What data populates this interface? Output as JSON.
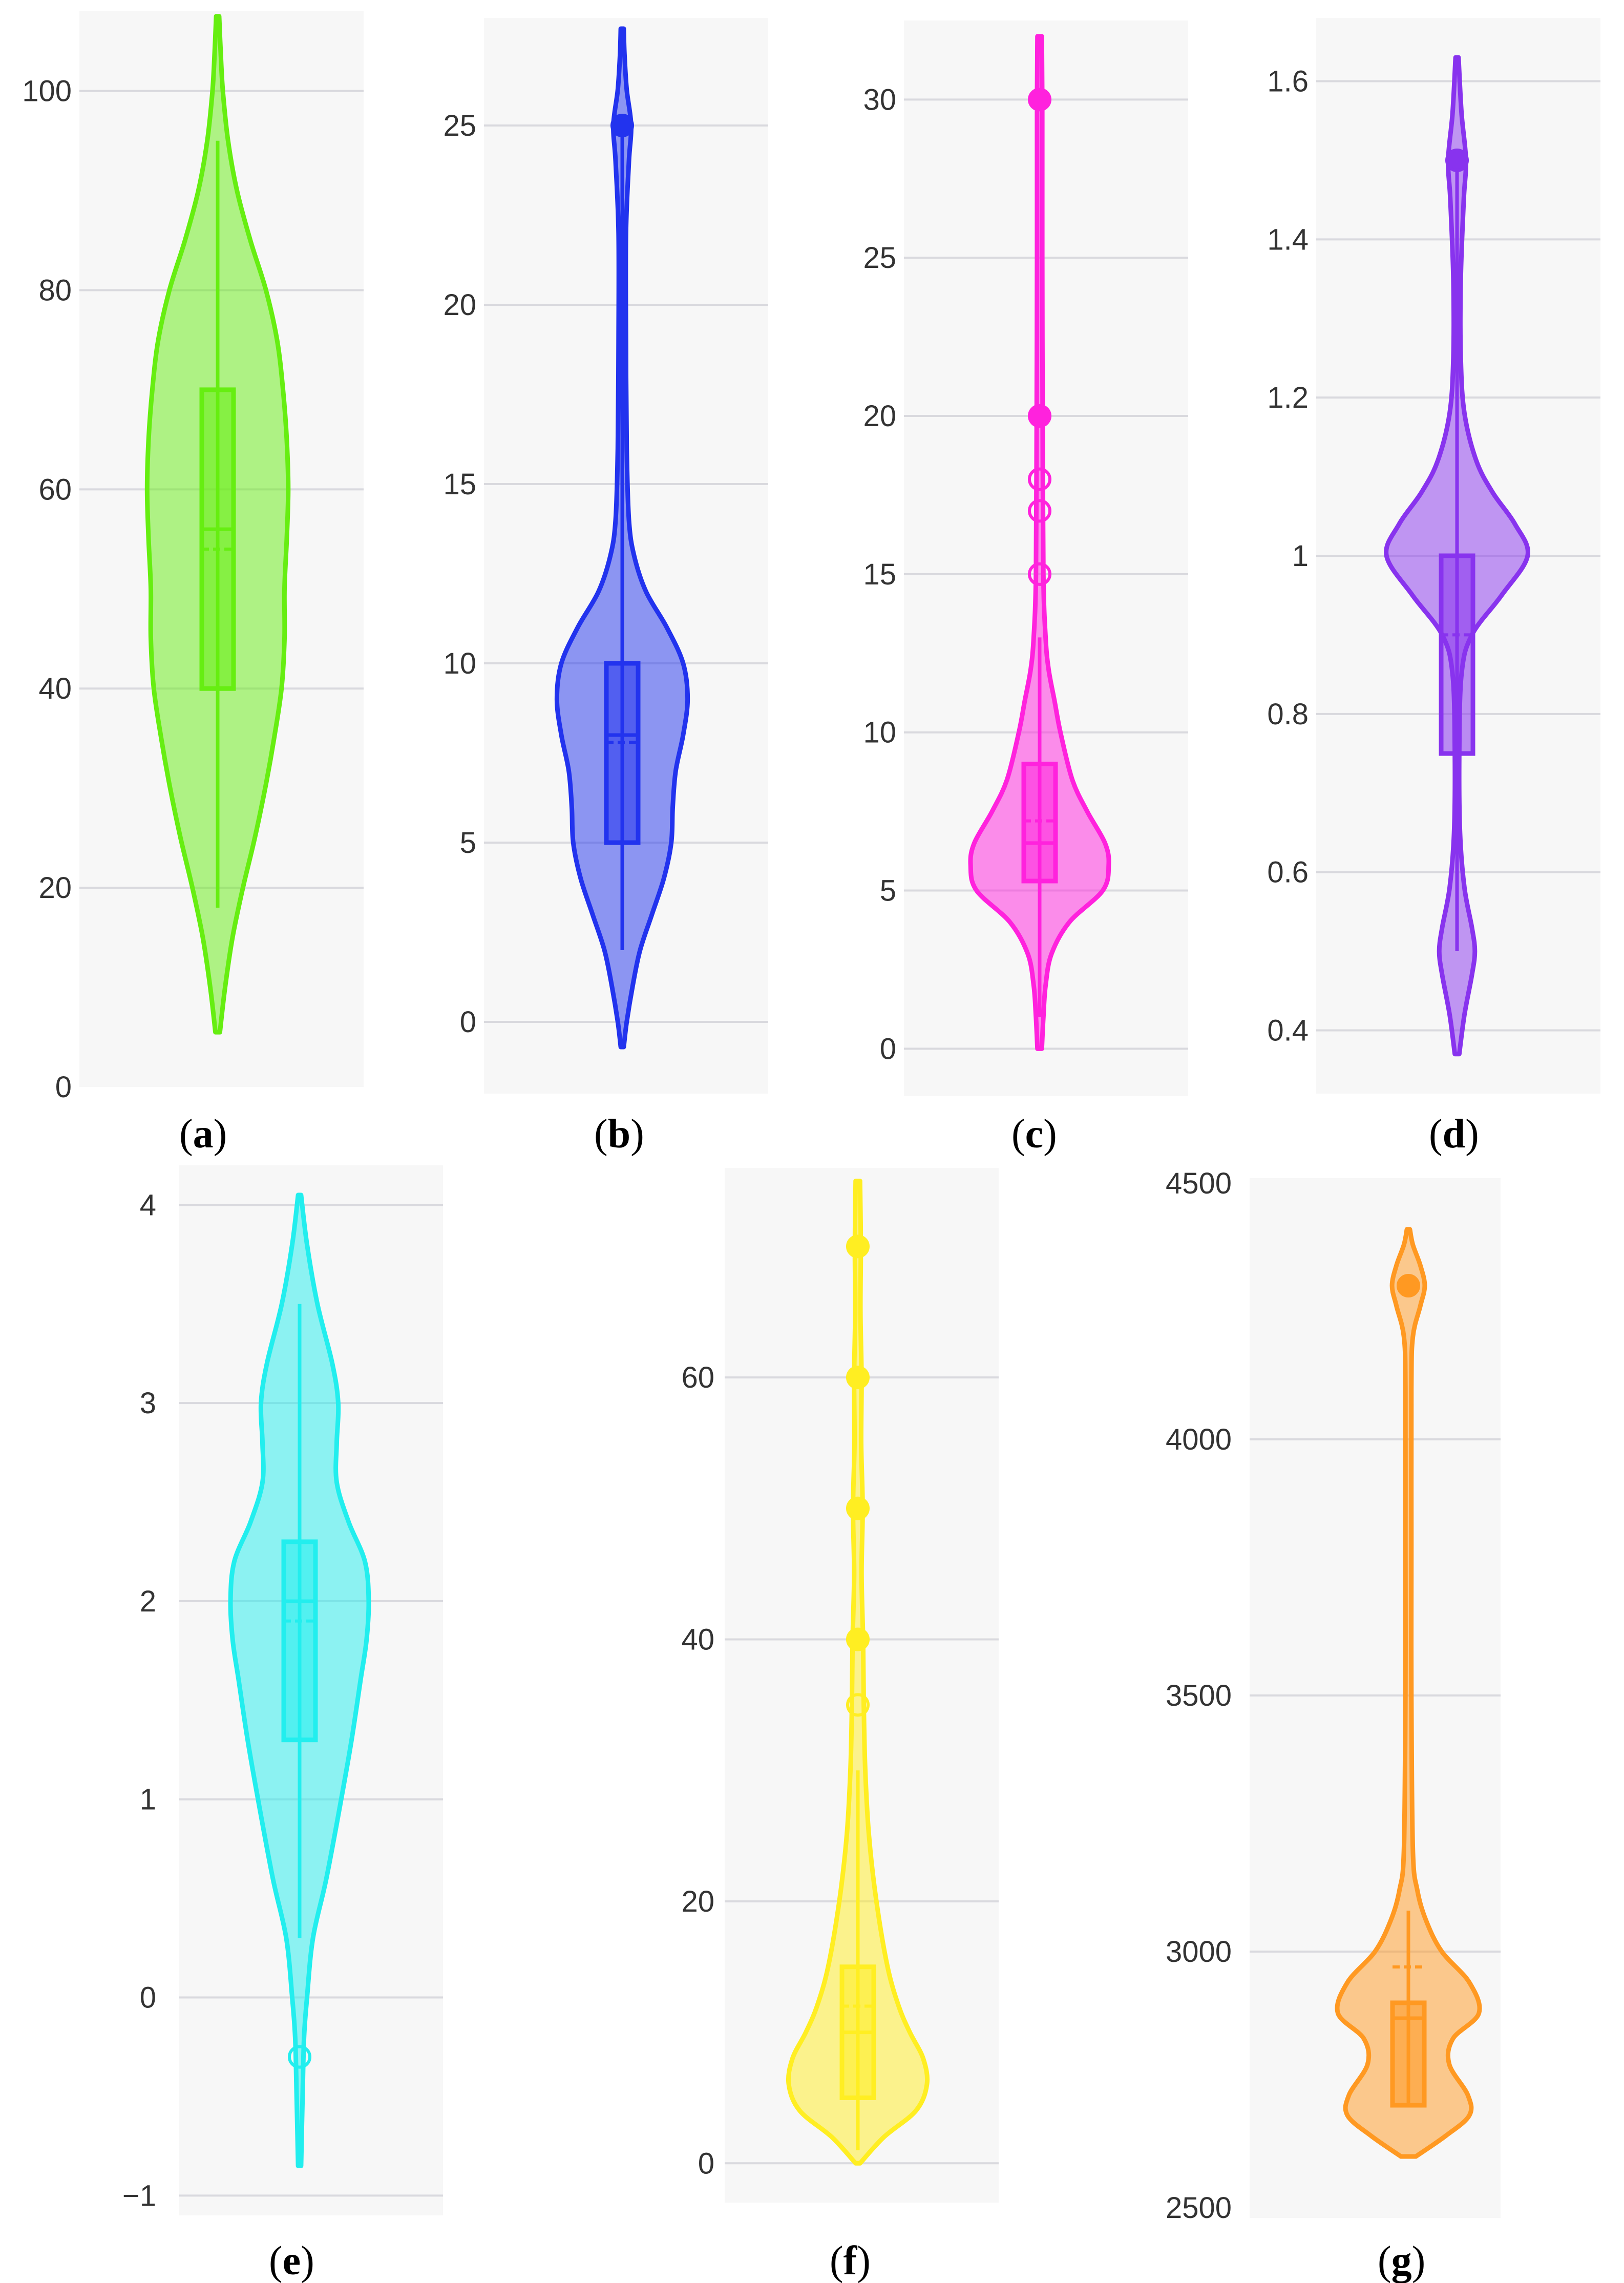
{
  "chart_data": [
    {
      "type": "violin",
      "panel": "a",
      "caption_letter": "a",
      "color": "#66ee11",
      "ylim": [
        0,
        108
      ],
      "yticks": [
        "0",
        "20",
        "40",
        "60",
        "80",
        "100"
      ],
      "ytick_values": [
        0,
        20,
        40,
        60,
        80,
        100
      ],
      "gridlines": [
        20,
        40,
        60,
        80,
        100
      ],
      "min": 5.5,
      "max": 107.5,
      "whisker_low": 18,
      "whisker_high": 95,
      "q1": 40,
      "median": 56,
      "q3": 70,
      "mean": 54,
      "outliers": [],
      "density": [
        [
          5.5,
          0.03
        ],
        [
          10,
          0.1
        ],
        [
          15,
          0.2
        ],
        [
          20,
          0.34
        ],
        [
          25,
          0.5
        ],
        [
          30,
          0.64
        ],
        [
          35,
          0.76
        ],
        [
          40,
          0.86
        ],
        [
          45,
          0.9
        ],
        [
          50,
          0.9
        ],
        [
          55,
          0.93
        ],
        [
          60,
          0.95
        ],
        [
          65,
          0.93
        ],
        [
          70,
          0.88
        ],
        [
          75,
          0.8
        ],
        [
          80,
          0.65
        ],
        [
          85,
          0.44
        ],
        [
          90,
          0.26
        ],
        [
          95,
          0.14
        ],
        [
          100,
          0.07
        ],
        [
          104,
          0.04
        ],
        [
          107.5,
          0.02
        ]
      ]
    },
    {
      "type": "violin",
      "panel": "b",
      "caption_letter": "b",
      "color": "#2233ee",
      "ylim": [
        -2,
        28
      ],
      "yticks": [
        "0",
        "5",
        "10",
        "15",
        "20",
        "25"
      ],
      "ytick_values": [
        0,
        5,
        10,
        15,
        20,
        25
      ],
      "gridlines": [
        0,
        5,
        10,
        15,
        20,
        25
      ],
      "min": -0.7,
      "max": 27.7,
      "whisker_low": 2,
      "whisker_high": 25,
      "q1": 5,
      "median": 8,
      "q3": 10,
      "mean": 7.8,
      "outliers": [
        {
          "value": 25,
          "filled": true
        }
      ],
      "density": [
        [
          -0.7,
          0.02
        ],
        [
          0,
          0.06
        ],
        [
          1,
          0.14
        ],
        [
          2,
          0.24
        ],
        [
          3,
          0.4
        ],
        [
          4,
          0.56
        ],
        [
          5,
          0.66
        ],
        [
          6,
          0.68
        ],
        [
          7,
          0.72
        ],
        [
          8,
          0.82
        ],
        [
          9,
          0.88
        ],
        [
          10,
          0.82
        ],
        [
          11,
          0.6
        ],
        [
          12,
          0.32
        ],
        [
          13,
          0.16
        ],
        [
          14,
          0.09
        ],
        [
          16,
          0.06
        ],
        [
          19,
          0.05
        ],
        [
          22,
          0.05
        ],
        [
          24,
          0.09
        ],
        [
          25,
          0.12
        ],
        [
          26,
          0.06
        ],
        [
          27,
          0.03
        ],
        [
          27.7,
          0.02
        ]
      ]
    },
    {
      "type": "violin",
      "panel": "c",
      "caption_letter": "c",
      "color": "#ff22dd",
      "ylim": [
        -1.5,
        32.5
      ],
      "yticks": [
        "0",
        "5",
        "10",
        "15",
        "20",
        "25",
        "30"
      ],
      "ytick_values": [
        0,
        5,
        10,
        15,
        20,
        25,
        30
      ],
      "gridlines": [
        0,
        5,
        10,
        15,
        20,
        25,
        30
      ],
      "min": 0,
      "max": 32,
      "whisker_low": 1,
      "whisker_high": 13,
      "q1": 5.3,
      "median": 6.5,
      "q3": 9,
      "mean": 7.2,
      "outliers": [
        {
          "value": 15,
          "filled": false
        },
        {
          "value": 17,
          "filled": false
        },
        {
          "value": 18,
          "filled": false
        },
        {
          "value": 20,
          "filled": true
        },
        {
          "value": 30,
          "filled": true
        }
      ],
      "density": [
        [
          0,
          0.03
        ],
        [
          1,
          0.05
        ],
        [
          2,
          0.08
        ],
        [
          3,
          0.16
        ],
        [
          4,
          0.4
        ],
        [
          5,
          0.85
        ],
        [
          5.8,
          0.93
        ],
        [
          6.5,
          0.88
        ],
        [
          7.5,
          0.64
        ],
        [
          8.5,
          0.44
        ],
        [
          10,
          0.28
        ],
        [
          11,
          0.2
        ],
        [
          12,
          0.12
        ],
        [
          13,
          0.08
        ],
        [
          15,
          0.05
        ],
        [
          20,
          0.04
        ],
        [
          25,
          0.035
        ],
        [
          30,
          0.035
        ],
        [
          32,
          0.03
        ]
      ]
    },
    {
      "type": "violin",
      "panel": "d",
      "caption_letter": "d",
      "color": "#8833ee",
      "ylim": [
        0.32,
        1.68
      ],
      "yticks": [
        "0.4",
        "0.6",
        "0.8",
        "1",
        "1.2",
        "1.4",
        "1.6"
      ],
      "ytick_values": [
        0.4,
        0.6,
        0.8,
        1,
        1.2,
        1.4,
        1.6
      ],
      "gridlines": [
        0.4,
        0.6,
        0.8,
        1,
        1.2,
        1.4,
        1.6
      ],
      "min": 0.37,
      "max": 1.63,
      "whisker_low": 0.5,
      "whisker_high": 1.5,
      "q1": 0.75,
      "median": 1,
      "q3": 1,
      "mean": 0.9,
      "outliers": [
        {
          "value": 1.5,
          "filled": true
        }
      ],
      "density": [
        [
          0.37,
          0.03
        ],
        [
          0.42,
          0.1
        ],
        [
          0.47,
          0.2
        ],
        [
          0.5,
          0.24
        ],
        [
          0.53,
          0.2
        ],
        [
          0.58,
          0.1
        ],
        [
          0.65,
          0.04
        ],
        [
          0.75,
          0.03
        ],
        [
          0.85,
          0.06
        ],
        [
          0.9,
          0.2
        ],
        [
          0.95,
          0.6
        ],
        [
          1,
          0.95
        ],
        [
          1.04,
          0.78
        ],
        [
          1.08,
          0.48
        ],
        [
          1.12,
          0.26
        ],
        [
          1.18,
          0.1
        ],
        [
          1.25,
          0.05
        ],
        [
          1.35,
          0.05
        ],
        [
          1.45,
          0.09
        ],
        [
          1.5,
          0.12
        ],
        [
          1.56,
          0.06
        ],
        [
          1.63,
          0.02
        ]
      ]
    },
    {
      "type": "violin",
      "panel": "e",
      "caption_letter": "e",
      "color": "#22eeee",
      "ylim": [
        -1.1,
        4.2
      ],
      "yticks": [
        "−1",
        "0",
        "1",
        "2",
        "3",
        "4"
      ],
      "ytick_values": [
        -1,
        0,
        1,
        2,
        3,
        4
      ],
      "gridlines": [
        -1,
        0,
        1,
        2,
        3,
        4
      ],
      "min": -0.85,
      "max": 4.05,
      "whisker_low": 0.3,
      "whisker_high": 3.5,
      "q1": 1.3,
      "median": 2,
      "q3": 2.3,
      "mean": 1.9,
      "outliers": [
        {
          "value": -0.3,
          "filled": false
        }
      ],
      "density": [
        [
          -0.85,
          0.02
        ],
        [
          -0.5,
          0.04
        ],
        [
          -0.2,
          0.06
        ],
        [
          0,
          0.1
        ],
        [
          0.3,
          0.18
        ],
        [
          0.6,
          0.36
        ],
        [
          1,
          0.56
        ],
        [
          1.3,
          0.7
        ],
        [
          1.6,
          0.82
        ],
        [
          1.8,
          0.9
        ],
        [
          2,
          0.93
        ],
        [
          2.2,
          0.88
        ],
        [
          2.4,
          0.66
        ],
        [
          2.6,
          0.5
        ],
        [
          2.8,
          0.5
        ],
        [
          3,
          0.52
        ],
        [
          3.2,
          0.44
        ],
        [
          3.5,
          0.24
        ],
        [
          3.8,
          0.1
        ],
        [
          4.05,
          0.02
        ]
      ]
    },
    {
      "type": "violin",
      "panel": "f",
      "caption_letter": "f",
      "color": "#ffee22",
      "ylim": [
        -3,
        76
      ],
      "yticks": [
        "0",
        "20",
        "40",
        "60"
      ],
      "ytick_values": [
        0,
        20,
        40,
        60
      ],
      "gridlines": [
        0,
        20,
        40,
        60
      ],
      "min": 0,
      "max": 75,
      "whisker_low": 1,
      "whisker_high": 30,
      "q1": 5,
      "median": 10,
      "q3": 15,
      "mean": 12,
      "outliers": [
        {
          "value": 35,
          "filled": false
        },
        {
          "value": 40,
          "filled": true
        },
        {
          "value": 50,
          "filled": true
        },
        {
          "value": 60,
          "filled": true
        },
        {
          "value": 70,
          "filled": true
        }
      ],
      "density": [
        [
          0,
          0.03
        ],
        [
          2,
          0.35
        ],
        [
          4,
          0.78
        ],
        [
          6,
          0.93
        ],
        [
          8,
          0.88
        ],
        [
          10,
          0.7
        ],
        [
          12,
          0.55
        ],
        [
          15,
          0.4
        ],
        [
          20,
          0.25
        ],
        [
          25,
          0.15
        ],
        [
          30,
          0.1
        ],
        [
          35,
          0.08
        ],
        [
          40,
          0.07
        ],
        [
          45,
          0.05
        ],
        [
          50,
          0.065
        ],
        [
          55,
          0.045
        ],
        [
          60,
          0.05
        ],
        [
          65,
          0.035
        ],
        [
          70,
          0.04
        ],
        [
          75,
          0.03
        ]
      ]
    },
    {
      "type": "violin",
      "panel": "g",
      "caption_letter": "g",
      "color": "#ff9922",
      "ylim": [
        2480,
        4510
      ],
      "yticks": [
        "2500",
        "3000",
        "3500",
        "4000",
        "4500"
      ],
      "ytick_values": [
        2500,
        3000,
        3500,
        4000,
        4500
      ],
      "gridlines": [
        3000,
        3500,
        4000
      ],
      "min": 2600,
      "max": 4410,
      "whisker_low": 2700,
      "whisker_high": 3080,
      "q1": 2700,
      "median": 2870,
      "q3": 2900,
      "mean": 2970,
      "outliers": [
        {
          "value": 4300,
          "filled": true
        }
      ],
      "density": [
        [
          2600,
          0.1
        ],
        [
          2640,
          0.5
        ],
        [
          2680,
          0.82
        ],
        [
          2720,
          0.8
        ],
        [
          2780,
          0.55
        ],
        [
          2830,
          0.6
        ],
        [
          2880,
          0.95
        ],
        [
          2940,
          0.82
        ],
        [
          3000,
          0.45
        ],
        [
          3060,
          0.24
        ],
        [
          3120,
          0.12
        ],
        [
          3200,
          0.06
        ],
        [
          3500,
          0.04
        ],
        [
          3800,
          0.04
        ],
        [
          4100,
          0.04
        ],
        [
          4200,
          0.06
        ],
        [
          4260,
          0.16
        ],
        [
          4300,
          0.22
        ],
        [
          4340,
          0.16
        ],
        [
          4380,
          0.06
        ],
        [
          4410,
          0.02
        ]
      ]
    }
  ]
}
